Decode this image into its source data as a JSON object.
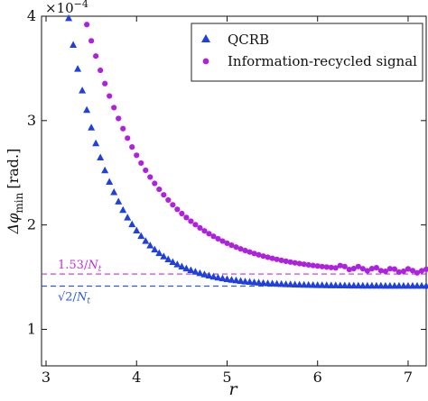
{
  "chart_data": {
    "type": "scatter",
    "xlabel": "r",
    "ylabel": "Δφ_min [rad.]",
    "ylabel_main": "Δφ",
    "ylabel_sub": "min",
    "ylabel_unit": "[rad.]",
    "y_multiplier": "×10",
    "y_multiplier_exp": "−4",
    "xlim": [
      2.95,
      7.2
    ],
    "ylim": [
      0.65,
      4.0
    ],
    "x_ticks": [
      3,
      4,
      5,
      6,
      7
    ],
    "y_ticks": [
      1,
      2,
      3,
      4
    ],
    "grid": false,
    "legend_position": "top-right",
    "series": [
      {
        "name": "QCRB",
        "marker": "triangle",
        "color": "#1f3fe0",
        "asymptote": 1.414,
        "x_start": 3.25,
        "x_end": 7.2,
        "x_step": 0.05,
        "y_start": 3.98,
        "decay_rate": 2.1
      },
      {
        "name": "Information-recycled signal",
        "marker": "circle",
        "color": "#b020e0",
        "asymptote": 1.53,
        "x_start": 3.45,
        "x_end": 7.2,
        "x_step": 0.05,
        "y_start": 3.92,
        "decay_rate": 1.35
      }
    ],
    "reference_lines": [
      {
        "y": 1.53,
        "label_base": "1.53/",
        "label_var": "N",
        "label_sub": "t",
        "color": "#c030d8",
        "style": "dashed",
        "label_position": "above-left"
      },
      {
        "y": 1.414,
        "label_base": "√2/",
        "label_var": "N",
        "label_sub": "t",
        "color": "#2a5ae0",
        "style": "dashed",
        "label_position": "below-left"
      }
    ]
  }
}
